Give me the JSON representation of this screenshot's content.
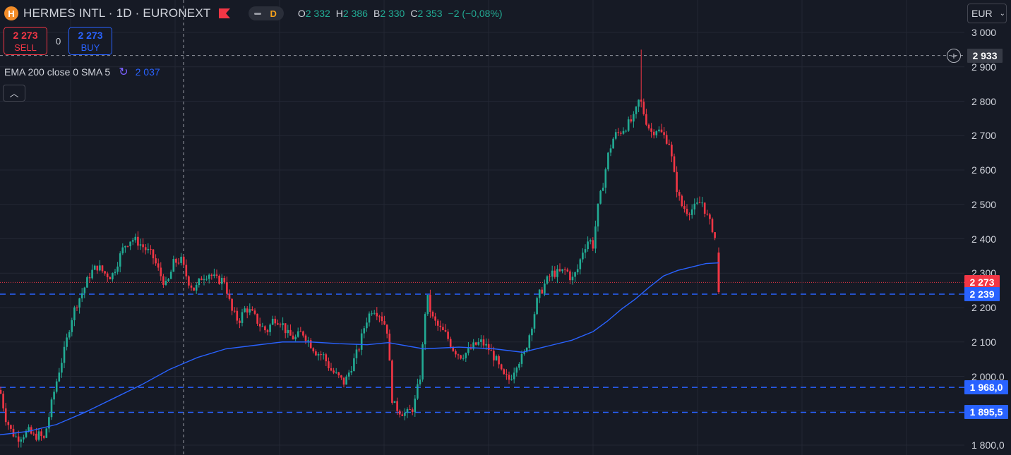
{
  "header": {
    "logo_letter": "H",
    "symbol": "HERMES INTL · 1D · EURONEXT",
    "timeframe": "D",
    "ohlc": [
      {
        "k": "O",
        "v": "2 332"
      },
      {
        "k": "H",
        "v": "2 386"
      },
      {
        "k": "B",
        "v": "2 330"
      },
      {
        "k": "C",
        "v": "2 353"
      },
      {
        "k": "",
        "v": "−2 (−0,08%)"
      }
    ]
  },
  "trade": {
    "sell_price": "2 273",
    "sell_label": "SELL",
    "spread": "0",
    "buy_price": "2 273",
    "buy_label": "BUY"
  },
  "indicator": {
    "label": "EMA 200 close 0 SMA 5",
    "value": "2 037"
  },
  "collapse_icon": "chevron-up-icon",
  "currency": {
    "value": "EUR"
  },
  "colors": {
    "up": "#22ab94",
    "down": "#f23645",
    "ema": "#2962ff",
    "bg": "#161a25"
  },
  "price_axis": {
    "labels": [
      "3 000",
      "2 900",
      "2 800",
      "2 700",
      "2 600",
      "2 500",
      "2 400",
      "2 300",
      "2 200",
      "2 100",
      "2 000,0",
      "1 800,0"
    ],
    "values": [
      3000,
      2900,
      2800,
      2700,
      2600,
      2500,
      2400,
      2300,
      2200,
      2100,
      2000,
      1800
    ]
  },
  "markers": {
    "crosshair": {
      "text": "2 933",
      "value": 2933
    },
    "last_price": {
      "text": "2 273",
      "value": 2273
    },
    "hlines": [
      {
        "text": "2 239",
        "value": 2239
      },
      {
        "text": "1 968,0",
        "value": 1968
      },
      {
        "text": "1 895,5",
        "value": 1895.5
      }
    ]
  },
  "chart_data": {
    "type": "candlestick",
    "ylim": [
      1775,
      3040
    ],
    "grid": true,
    "price_points": [
      [
        0,
        1960
      ],
      [
        8,
        1880
      ],
      [
        16,
        1840
      ],
      [
        24,
        1820
      ],
      [
        32,
        1830
      ],
      [
        40,
        1840
      ],
      [
        48,
        1825
      ],
      [
        56,
        1830
      ],
      [
        62,
        1815
      ],
      [
        68,
        1870
      ],
      [
        76,
        1950
      ],
      [
        84,
        2020
      ],
      [
        92,
        2080
      ],
      [
        100,
        2160
      ],
      [
        108,
        2210
      ],
      [
        118,
        2250
      ],
      [
        128,
        2300
      ],
      [
        138,
        2320
      ],
      [
        148,
        2300
      ],
      [
        158,
        2290
      ],
      [
        166,
        2330
      ],
      [
        176,
        2380
      ],
      [
        186,
        2400
      ],
      [
        196,
        2390
      ],
      [
        206,
        2370
      ],
      [
        216,
        2350
      ],
      [
        226,
        2300
      ],
      [
        236,
        2260
      ],
      [
        246,
        2330
      ],
      [
        256,
        2340
      ],
      [
        266,
        2280
      ],
      [
        276,
        2250
      ],
      [
        286,
        2290
      ],
      [
        296,
        2300
      ],
      [
        306,
        2280
      ],
      [
        318,
        2280
      ],
      [
        328,
        2190
      ],
      [
        338,
        2160
      ],
      [
        348,
        2200
      ],
      [
        358,
        2180
      ],
      [
        368,
        2150
      ],
      [
        378,
        2130
      ],
      [
        388,
        2170
      ],
      [
        398,
        2160
      ],
      [
        408,
        2120
      ],
      [
        418,
        2110
      ],
      [
        428,
        2130
      ],
      [
        438,
        2100
      ],
      [
        448,
        2070
      ],
      [
        458,
        2060
      ],
      [
        468,
        2020
      ],
      [
        478,
        2000
      ],
      [
        488,
        1980
      ],
      [
        498,
        2030
      ],
      [
        508,
        2080
      ],
      [
        518,
        2160
      ],
      [
        528,
        2200
      ],
      [
        538,
        2180
      ],
      [
        548,
        2140
      ],
      [
        556,
        1920
      ],
      [
        566,
        1900
      ],
      [
        576,
        1890
      ],
      [
        586,
        1910
      ],
      [
        596,
        2010
      ],
      [
        604,
        2240
      ],
      [
        612,
        2170
      ],
      [
        622,
        2140
      ],
      [
        632,
        2120
      ],
      [
        642,
        2080
      ],
      [
        652,
        2060
      ],
      [
        662,
        2070
      ],
      [
        672,
        2090
      ],
      [
        682,
        2100
      ],
      [
        692,
        2080
      ],
      [
        702,
        2050
      ],
      [
        712,
        2000
      ],
      [
        722,
        1990
      ],
      [
        732,
        2040
      ],
      [
        742,
        2060
      ],
      [
        752,
        2140
      ],
      [
        762,
        2230
      ],
      [
        772,
        2270
      ],
      [
        782,
        2300
      ],
      [
        792,
        2300
      ],
      [
        802,
        2310
      ],
      [
        810,
        2280
      ],
      [
        818,
        2310
      ],
      [
        826,
        2370
      ],
      [
        834,
        2400
      ],
      [
        840,
        2380
      ],
      [
        846,
        2480
      ],
      [
        854,
        2560
      ],
      [
        862,
        2650
      ],
      [
        870,
        2700
      ],
      [
        878,
        2710
      ],
      [
        888,
        2730
      ],
      [
        898,
        2750
      ],
      [
        906,
        2810
      ],
      [
        914,
        2750
      ],
      [
        922,
        2710
      ],
      [
        930,
        2720
      ],
      [
        940,
        2700
      ],
      [
        948,
        2680
      ],
      [
        956,
        2570
      ],
      [
        964,
        2500
      ],
      [
        974,
        2480
      ],
      [
        984,
        2490
      ],
      [
        994,
        2510
      ],
      [
        1004,
        2450
      ],
      [
        1012,
        2420
      ],
      [
        1018,
        2240
      ]
    ],
    "ema200": [
      [
        0,
        1830
      ],
      [
        40,
        1840
      ],
      [
        80,
        1860
      ],
      [
        120,
        1895
      ],
      [
        160,
        1935
      ],
      [
        200,
        1975
      ],
      [
        240,
        2020
      ],
      [
        280,
        2055
      ],
      [
        320,
        2080
      ],
      [
        360,
        2090
      ],
      [
        400,
        2100
      ],
      [
        440,
        2100
      ],
      [
        480,
        2095
      ],
      [
        520,
        2092
      ],
      [
        550,
        2098
      ],
      [
        600,
        2080
      ],
      [
        650,
        2085
      ],
      [
        700,
        2080
      ],
      [
        740,
        2070
      ],
      [
        780,
        2090
      ],
      [
        810,
        2105
      ],
      [
        840,
        2130
      ],
      [
        860,
        2160
      ],
      [
        880,
        2195
      ],
      [
        900,
        2225
      ],
      [
        920,
        2260
      ],
      [
        940,
        2292
      ],
      [
        960,
        2308
      ],
      [
        980,
        2318
      ],
      [
        1000,
        2328
      ],
      [
        1018,
        2330
      ]
    ],
    "spike": {
      "x": 908,
      "high": 2950
    },
    "crosshair_x": 260
  }
}
